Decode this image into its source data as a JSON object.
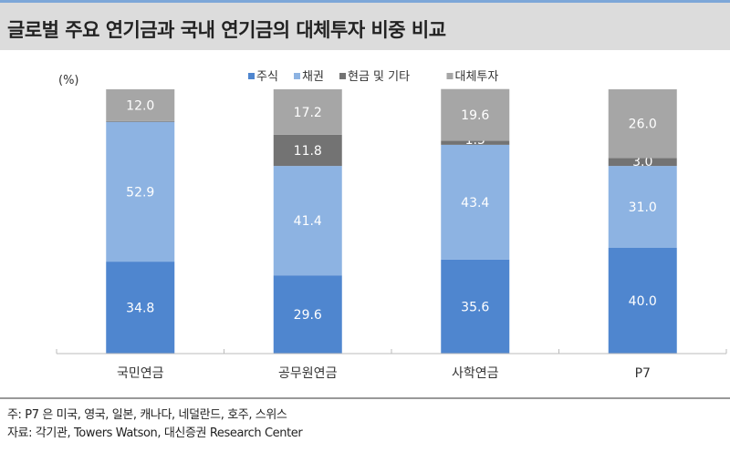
{
  "header": {
    "title": "글로벌 주요 연기금과 국내 연기금의 대체투자 비중 비교"
  },
  "chart_data": {
    "type": "bar",
    "stacked": true,
    "unit_label": "(%)",
    "categories": [
      "국민연금",
      "공무원연금",
      "사학연금",
      "P7"
    ],
    "series": [
      {
        "name": "주식",
        "color": "#4f86cf",
        "label_color": "#ffffff",
        "values": [
          34.8,
          29.6,
          35.6,
          40.0
        ]
      },
      {
        "name": "채권",
        "color": "#8db3e2",
        "label_color": "#ffffff",
        "values": [
          52.9,
          41.4,
          43.4,
          31.0
        ]
      },
      {
        "name": "현금 및 기타",
        "color": "#737373",
        "label_color": "#ffffff",
        "values": [
          0.3,
          11.8,
          1.5,
          3.0
        ]
      },
      {
        "name": "대체투자",
        "color": "#a6a6a6",
        "label_color": "#ffffff",
        "values": [
          12.0,
          17.2,
          19.6,
          26.0
        ]
      }
    ],
    "ylim": [
      0,
      100
    ],
    "legend": "top-center",
    "grid": false
  },
  "footer": {
    "note": "주: P7 은 미국, 영국, 일본, 캐나다, 네덜란드, 호주, 스위스",
    "source": "자료: 각기관, Towers Watson, 대신증권 Research Center"
  }
}
